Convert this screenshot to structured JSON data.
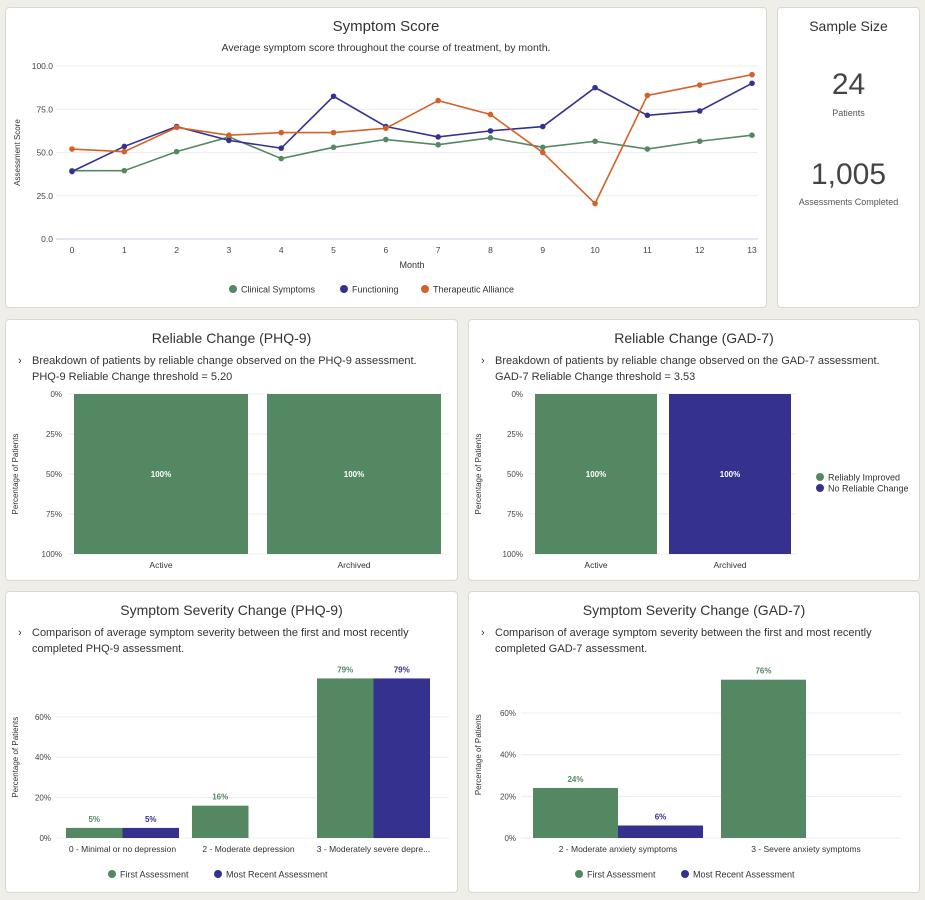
{
  "colors": {
    "green": "#548863",
    "blue": "#35318f",
    "orange": "#d2622a"
  },
  "symptom_score": {
    "title": "Symptom Score",
    "subtitle": "Average symptom score throughout the course of treatment, by month."
  },
  "sample_size": {
    "title": "Sample Size",
    "patients_value": "24",
    "patients_label": "Patients",
    "assessments_value": "1,005",
    "assessments_label": "Assessments Completed"
  },
  "rc_phq": {
    "title": "Reliable Change (PHQ-9)",
    "description": "Breakdown of patients by reliable change observed on the PHQ-9 assessment. PHQ-9 Reliable Change threshold = 5.20"
  },
  "rc_gad": {
    "title": "Reliable Change (GAD-7)",
    "description": "Breakdown of patients by reliable change observed on the GAD-7 assessment. GAD-7 Reliable Change threshold = 3.53"
  },
  "ss_phq": {
    "title": "Symptom Severity Change (PHQ-9)",
    "description": "Comparison of average symptom severity between the first and most recently completed PHQ-9 assessment."
  },
  "ss_gad": {
    "title": "Symptom Severity Change (GAD-7)",
    "description": "Comparison of average symptom severity between the first and most recently completed GAD-7 assessment."
  },
  "chart_data": [
    {
      "type": "line",
      "xlabel": "Month",
      "ylabel": "Assessment Score",
      "ylim": [
        0,
        100
      ],
      "yticks": [
        "0.0",
        "25.0",
        "50.0",
        "75.0",
        "100.0"
      ],
      "x": [
        0,
        1,
        2,
        3,
        4,
        5,
        6,
        7,
        8,
        9,
        10,
        11,
        12,
        13
      ],
      "legend": "bottom",
      "grid": true,
      "series": [
        {
          "name": "Clinical Symptoms",
          "color": "#548863",
          "values": [
            39.5,
            39.5,
            50.5,
            59,
            46.5,
            53,
            57.5,
            54.5,
            58.5,
            53,
            56.5,
            52,
            56.5,
            60
          ]
        },
        {
          "name": "Functioning",
          "color": "#35318f",
          "values": [
            39,
            53.5,
            65,
            57,
            52.5,
            82.5,
            65,
            59,
            62.5,
            65,
            87.5,
            71.5,
            74,
            90
          ]
        },
        {
          "name": "Therapeutic Alliance",
          "color": "#d2622a",
          "values": [
            52,
            50.5,
            64.5,
            60,
            61.5,
            61.5,
            64,
            80,
            72,
            50,
            20.5,
            83,
            89,
            95
          ]
        }
      ]
    },
    {
      "type": "bar",
      "stacked": true,
      "ylabel": "Percentage of Patients",
      "yticks": [
        "0%",
        "25%",
        "50%",
        "75%",
        "100%"
      ],
      "ylim": [
        0,
        100
      ],
      "y_reversed": true,
      "categories": [
        "Active",
        "Archived"
      ],
      "series": [
        {
          "name": "Reliably Improved",
          "color": "#548863",
          "values": [
            100,
            100
          ]
        }
      ],
      "data_labels": [
        "100%",
        "100%"
      ]
    },
    {
      "type": "bar",
      "stacked": true,
      "ylabel": "Percentage of Patients",
      "yticks": [
        "0%",
        "25%",
        "50%",
        "75%",
        "100%"
      ],
      "ylim": [
        0,
        100
      ],
      "y_reversed": true,
      "categories": [
        "Active",
        "Archived"
      ],
      "legend": "right",
      "series": [
        {
          "name": "Reliably Improved",
          "color": "#548863",
          "values": [
            100,
            0
          ]
        },
        {
          "name": "No Reliable Change",
          "color": "#35318f",
          "values": [
            0,
            100
          ]
        }
      ],
      "data_labels": [
        "100%",
        "100%"
      ]
    },
    {
      "type": "bar",
      "ylabel": "Percentage of Patients",
      "yticks": [
        "0%",
        "20%",
        "40%",
        "60%"
      ],
      "ylim": [
        0,
        80
      ],
      "legend": "bottom",
      "categories": [
        "0 - Minimal or no depression",
        "2 - Moderate depression",
        "3 - Moderately severe depre..."
      ],
      "series": [
        {
          "name": "First Assessment",
          "color": "#548863",
          "values": [
            5,
            16,
            79
          ],
          "labels": [
            "5%",
            "16%",
            "79%"
          ]
        },
        {
          "name": "Most Recent Assessment",
          "color": "#35318f",
          "values": [
            5,
            0,
            79
          ],
          "labels": [
            "5%",
            "",
            "79%"
          ]
        }
      ]
    },
    {
      "type": "bar",
      "ylabel": "Percentage of Patients",
      "yticks": [
        "0%",
        "20%",
        "40%",
        "60%"
      ],
      "ylim": [
        0,
        76
      ],
      "legend": "bottom",
      "categories": [
        "2 - Moderate anxiety symptoms",
        "3 - Severe anxiety symptoms"
      ],
      "series": [
        {
          "name": "First Assessment",
          "color": "#548863",
          "values": [
            24,
            76
          ],
          "labels": [
            "24%",
            "76%"
          ]
        },
        {
          "name": "Most Recent Assessment",
          "color": "#35318f",
          "values": [
            6,
            0
          ],
          "labels": [
            "6%",
            ""
          ]
        }
      ]
    }
  ]
}
